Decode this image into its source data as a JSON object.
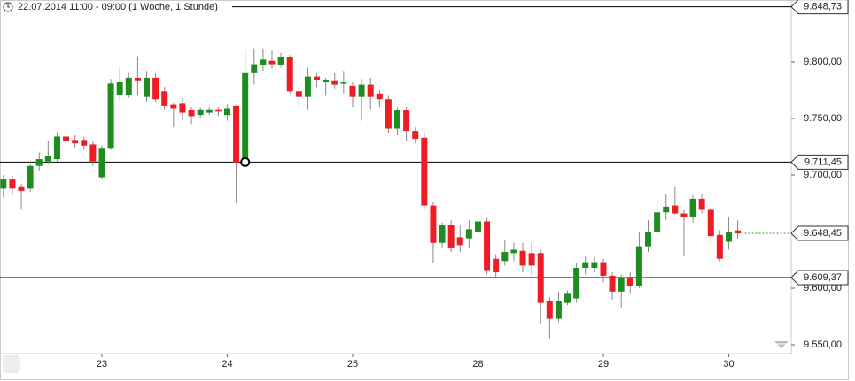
{
  "chart_data": {
    "type": "candlestick",
    "title": "22.07.2014 11:00 - 09:00 (1 Woche, 1 Stunde)",
    "categories": [
      null,
      null,
      null,
      null,
      null,
      null,
      null,
      null,
      null,
      null,
      null,
      "23",
      null,
      null,
      null,
      null,
      null,
      null,
      null,
      null,
      null,
      null,
      null,
      null,
      null,
      "24",
      null,
      null,
      null,
      null,
      null,
      null,
      null,
      null,
      null,
      null,
      null,
      null,
      null,
      "25",
      null,
      null,
      null,
      null,
      null,
      null,
      null,
      null,
      null,
      null,
      null,
      null,
      null,
      "28",
      null,
      null,
      null,
      null,
      null,
      null,
      null,
      null,
      null,
      null,
      null,
      null,
      null,
      "29",
      null,
      null,
      null,
      null,
      null,
      null,
      null,
      null,
      null,
      null,
      null,
      null,
      null,
      "30",
      null
    ],
    "open": [
      9688,
      9696,
      9690,
      9688,
      9708,
      9712,
      9714,
      9734,
      9731,
      9731,
      9727,
      9698,
      9724,
      9771,
      9771,
      9786,
      9769,
      9786,
      9774,
      9762,
      9763,
      9757,
      9753,
      9755,
      9758,
      9753,
      9761,
      9711,
      9790,
      9797,
      9801,
      9797,
      9804,
      9774,
      9769,
      9787,
      9782,
      9783,
      9781,
      9779,
      9769,
      9780,
      9772,
      9767,
      9741,
      9757,
      9739,
      9733,
      9673,
      9640,
      9656,
      9645,
      9644,
      9650,
      9659,
      9626,
      9624,
      9631,
      9633,
      9631,
      9631,
      9589,
      9573,
      9587,
      9591,
      9618,
      9618,
      9623,
      9611,
      9597,
      9610,
      9602,
      9637,
      9650,
      9667,
      9673,
      9666,
      9663,
      9679,
      9670,
      9647,
      9641,
      9651
    ],
    "high": [
      9700,
      9699,
      9692,
      9710,
      9720,
      9730,
      9738,
      9740,
      9735,
      9734,
      9730,
      9726,
      9785,
      9795,
      9790,
      9805,
      9792,
      9790,
      9778,
      9764,
      9768,
      9760,
      9760,
      9760,
      9760,
      9762,
      9762,
      9810,
      9812,
      9812,
      9810,
      9808,
      9806,
      9778,
      9795,
      9790,
      9786,
      9790,
      9792,
      9782,
      9785,
      9786,
      9775,
      9770,
      9760,
      9760,
      9742,
      9738,
      9676,
      9658,
      9660,
      9656,
      9660,
      9670,
      9662,
      9630,
      9642,
      9640,
      9640,
      9640,
      9634,
      9592,
      9597,
      9598,
      9622,
      9628,
      9628,
      9626,
      9614,
      9612,
      9614,
      9650,
      9660,
      9680,
      9683,
      9690,
      9670,
      9682,
      9683,
      9672,
      9651,
      9663,
      9660
    ],
    "low": [
      9680,
      9682,
      9670,
      9685,
      9704,
      9710,
      9712,
      9728,
      9724,
      9722,
      9708,
      9696,
      9722,
      9766,
      9768,
      9770,
      9765,
      9765,
      9758,
      9742,
      9748,
      9745,
      9750,
      9753,
      9752,
      9748,
      9675,
      9708,
      9780,
      9792,
      9794,
      9795,
      9772,
      9760,
      9758,
      9778,
      9770,
      9776,
      9772,
      9760,
      9748,
      9758,
      9760,
      9737,
      9735,
      9730,
      9728,
      9670,
      9622,
      9636,
      9632,
      9632,
      9636,
      9640,
      9612,
      9610,
      9620,
      9624,
      9614,
      9612,
      9568,
      9555,
      9570,
      9585,
      9587,
      9612,
      9614,
      9605,
      9590,
      9583,
      9595,
      9600,
      9632,
      9646,
      9660,
      9665,
      9628,
      9658,
      9666,
      9640,
      9624,
      9634,
      9644
    ],
    "close": [
      9696,
      9688,
      9686,
      9708,
      9714,
      9717,
      9734,
      9730,
      9728,
      9726,
      9712,
      9724,
      9781,
      9782,
      9786,
      9783,
      9786,
      9767,
      9761,
      9759,
      9755,
      9752,
      9758,
      9758,
      9756,
      9759,
      9711,
      9790,
      9798,
      9802,
      9798,
      9804,
      9774,
      9769,
      9787,
      9784,
      9784,
      9780,
      9782,
      9769,
      9780,
      9769,
      9767,
      9741,
      9757,
      9739,
      9732,
      9673,
      9640,
      9656,
      9636,
      9638,
      9652,
      9659,
      9616,
      9614,
      9632,
      9634,
      9620,
      9620,
      9587,
      9573,
      9589,
      9595,
      9618,
      9623,
      9623,
      9611,
      9597,
      9609,
      9602,
      9637,
      9650,
      9667,
      9672,
      9666,
      9663,
      9679,
      9670,
      9646,
      9626,
      9650,
      9648.45
    ],
    "up_color": "#1e8c1e",
    "down_color": "#ee1c25",
    "ylim": [
      9540,
      9855
    ],
    "yticks": [
      {
        "value": 9550,
        "label": "9.550,00"
      },
      {
        "value": 9600,
        "label": "9.600,00"
      },
      {
        "value": 9700,
        "label": "9.700,00"
      },
      {
        "value": 9750,
        "label": "9.750,00"
      },
      {
        "value": 9800,
        "label": "9.800,00"
      }
    ],
    "levels": [
      {
        "value": 9848.73,
        "label": "9.848,73",
        "color": "#000000"
      },
      {
        "value": 9711.45,
        "label": "9.711,45",
        "color": "#000000"
      },
      {
        "value": 9609.37,
        "label": "9.609,37",
        "color": "#000000"
      },
      {
        "value": 9648.45,
        "label": "9.648,45",
        "color": "#2e9e2e"
      }
    ]
  }
}
